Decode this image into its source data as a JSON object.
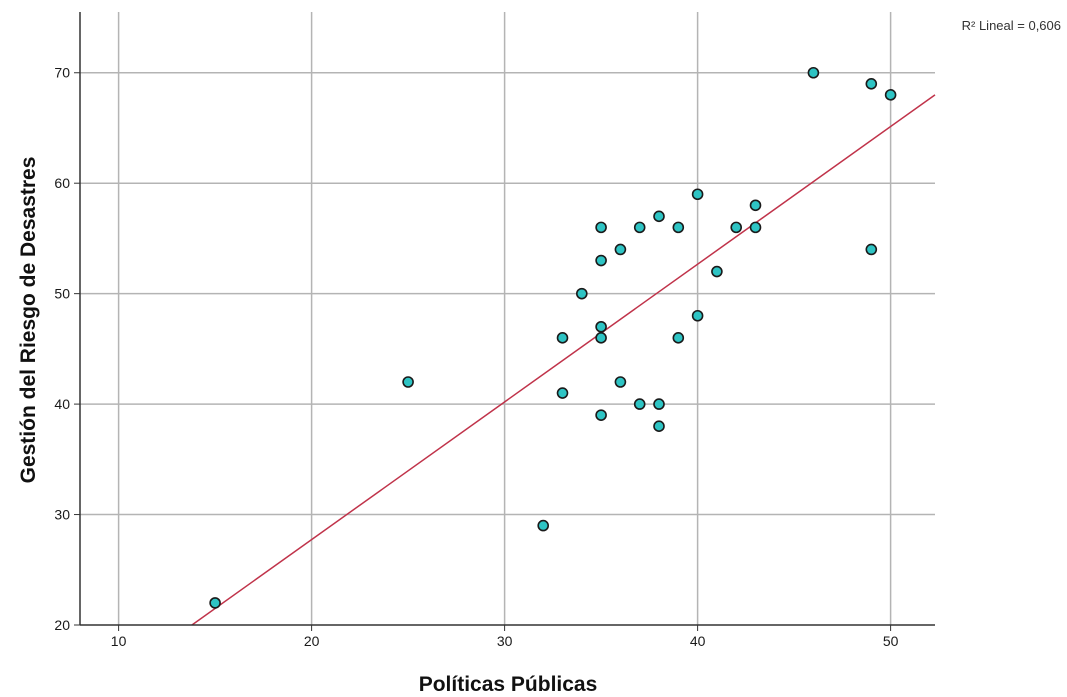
{
  "chart_data": {
    "type": "scatter",
    "title": "",
    "xlabel": "Políticas Públicas",
    "ylabel": "Gestión del Riesgo de Desastres",
    "xlim": [
      8,
      52.3
    ],
    "ylim": [
      20,
      75.5
    ],
    "xticks": [
      10,
      20,
      30,
      40,
      50
    ],
    "yticks": [
      20,
      30,
      40,
      50,
      60,
      70
    ],
    "grid": true,
    "fit_label": "R² Lineal = 0,606",
    "fit_line": {
      "x": [
        13.8,
        52.3
      ],
      "y": [
        20,
        68
      ]
    },
    "points": [
      {
        "x": 15,
        "y": 22
      },
      {
        "x": 25,
        "y": 42
      },
      {
        "x": 32,
        "y": 29
      },
      {
        "x": 33,
        "y": 46
      },
      {
        "x": 33,
        "y": 41
      },
      {
        "x": 34,
        "y": 50
      },
      {
        "x": 35,
        "y": 56
      },
      {
        "x": 35,
        "y": 53
      },
      {
        "x": 35,
        "y": 47
      },
      {
        "x": 35,
        "y": 46
      },
      {
        "x": 35,
        "y": 39
      },
      {
        "x": 36,
        "y": 54
      },
      {
        "x": 36,
        "y": 42
      },
      {
        "x": 37,
        "y": 56
      },
      {
        "x": 37,
        "y": 40
      },
      {
        "x": 38,
        "y": 57
      },
      {
        "x": 38,
        "y": 40
      },
      {
        "x": 38,
        "y": 38
      },
      {
        "x": 39,
        "y": 56
      },
      {
        "x": 39,
        "y": 46
      },
      {
        "x": 40,
        "y": 59
      },
      {
        "x": 40,
        "y": 48
      },
      {
        "x": 41,
        "y": 52
      },
      {
        "x": 42,
        "y": 56
      },
      {
        "x": 43,
        "y": 58
      },
      {
        "x": 43,
        "y": 56
      },
      {
        "x": 46,
        "y": 70
      },
      {
        "x": 49,
        "y": 69
      },
      {
        "x": 49,
        "y": 54
      },
      {
        "x": 50,
        "y": 68
      }
    ],
    "colors": {
      "point_fill": "#2ec4c4",
      "point_stroke": "#1a1a1a",
      "fit_line": "#c0334a",
      "grid": "#b4b4b4",
      "axis": "#333333"
    }
  }
}
